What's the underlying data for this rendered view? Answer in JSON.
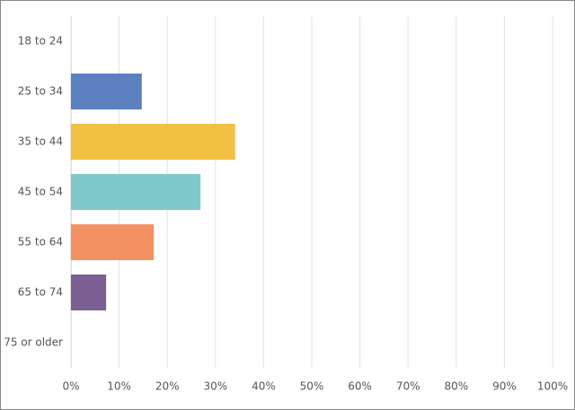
{
  "chart_data": {
    "type": "hbar",
    "categories": [
      "18 to 24",
      "25 to 34",
      "35 to 44",
      "45 to 54",
      "55 to 64",
      "65 to 74",
      "75 or older"
    ],
    "values": [
      0,
      14.7,
      34.1,
      26.9,
      17.2,
      7.3,
      0
    ],
    "colors": [
      "#5b7fbf",
      "#5b7fbf",
      "#f2c043",
      "#80c8cc",
      "#f39162",
      "#7b5e92",
      "#7b5e92"
    ],
    "xlim": [
      0,
      100
    ],
    "xticks": [
      {
        "value": 0,
        "label": "0%"
      },
      {
        "value": 10,
        "label": "10%"
      },
      {
        "value": 20,
        "label": "20%"
      },
      {
        "value": 30,
        "label": "30%"
      },
      {
        "value": 40,
        "label": "40%"
      },
      {
        "value": 50,
        "label": "50%"
      },
      {
        "value": 60,
        "label": "60%"
      },
      {
        "value": 70,
        "label": "70%"
      },
      {
        "value": 80,
        "label": "80%"
      },
      {
        "value": 90,
        "label": "90%"
      },
      {
        "value": 100,
        "label": "100%"
      }
    ],
    "grid": true
  }
}
